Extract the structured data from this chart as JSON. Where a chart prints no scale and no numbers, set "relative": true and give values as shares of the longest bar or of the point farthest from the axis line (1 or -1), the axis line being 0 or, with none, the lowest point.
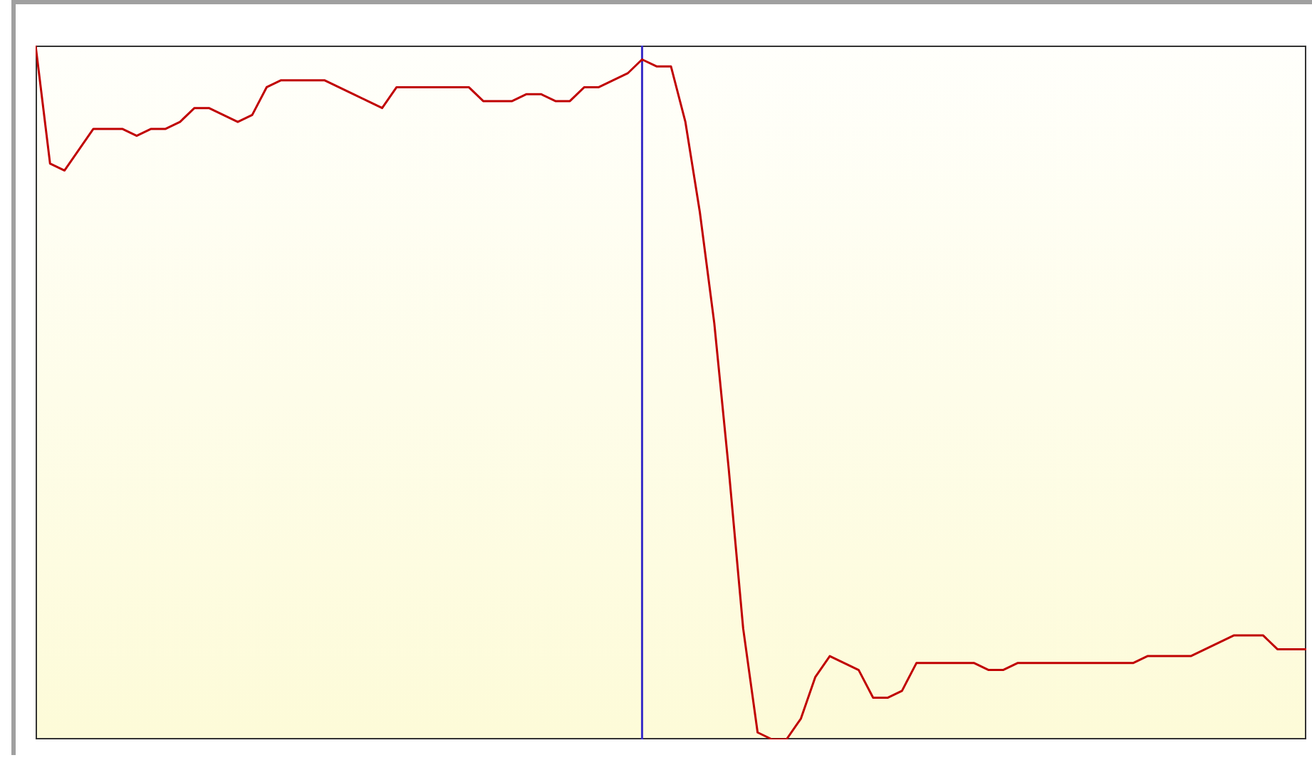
{
  "chart_data": {
    "type": "line",
    "relative": true,
    "marker": "none",
    "line_style": "solid",
    "categories": [
      null,
      null,
      null,
      null,
      null,
      null,
      null,
      null,
      null,
      null,
      null,
      null,
      null,
      null,
      null,
      null,
      null,
      null,
      null,
      null,
      null,
      null,
      null,
      null,
      null,
      null,
      null,
      null,
      null,
      null,
      null,
      null,
      null,
      null,
      null,
      null,
      null,
      null,
      null,
      null,
      null,
      null,
      null,
      null,
      null,
      null,
      null,
      null,
      null,
      null,
      null,
      null,
      null,
      null,
      null,
      null,
      null,
      null,
      null,
      null,
      null,
      null,
      null,
      null,
      null,
      null,
      null,
      null,
      null,
      null,
      null,
      null,
      null,
      null,
      null,
      null,
      null,
      null,
      null,
      null,
      null,
      null,
      null,
      null,
      null,
      null,
      null,
      null,
      null
    ],
    "series": [
      {
        "color": "#c00000",
        "values": [
          1.0,
          0.83,
          0.82,
          0.85,
          0.88,
          0.88,
          0.88,
          0.87,
          0.88,
          0.88,
          0.89,
          0.91,
          0.91,
          0.9,
          0.89,
          0.9,
          0.94,
          0.95,
          0.95,
          0.95,
          0.95,
          0.94,
          0.93,
          0.92,
          0.91,
          0.94,
          0.94,
          0.94,
          0.94,
          0.94,
          0.94,
          0.92,
          0.92,
          0.92,
          0.93,
          0.93,
          0.92,
          0.92,
          0.94,
          0.94,
          0.95,
          0.96,
          0.98,
          0.97,
          0.97,
          0.89,
          0.76,
          0.6,
          0.39,
          0.16,
          0.01,
          0.0,
          0.0,
          0.03,
          0.09,
          0.12,
          0.11,
          0.1,
          0.06,
          0.06,
          0.07,
          0.11,
          0.11,
          0.11,
          0.11,
          0.11,
          0.1,
          0.1,
          0.11,
          0.11,
          0.11,
          0.11,
          0.11,
          0.11,
          0.11,
          0.11,
          0.11,
          0.12,
          0.12,
          0.12,
          0.12,
          0.13,
          0.14,
          0.15,
          0.15,
          0.15,
          0.13,
          0.13,
          0.13
        ]
      }
    ]
  }
}
